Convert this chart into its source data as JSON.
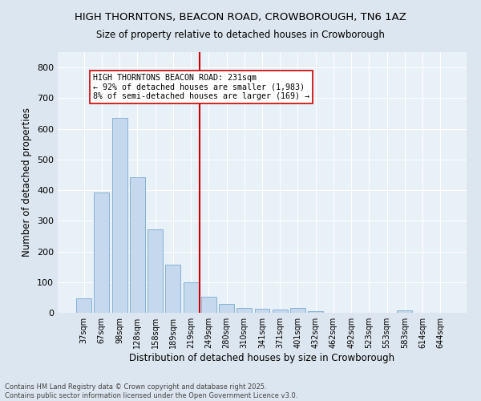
{
  "title1": "HIGH THORNTONS, BEACON ROAD, CROWBOROUGH, TN6 1AZ",
  "title2": "Size of property relative to detached houses in Crowborough",
  "xlabel": "Distribution of detached houses by size in Crowborough",
  "ylabel": "Number of detached properties",
  "categories": [
    "37sqm",
    "67sqm",
    "98sqm",
    "128sqm",
    "158sqm",
    "189sqm",
    "219sqm",
    "249sqm",
    "280sqm",
    "310sqm",
    "341sqm",
    "371sqm",
    "401sqm",
    "432sqm",
    "462sqm",
    "492sqm",
    "523sqm",
    "553sqm",
    "583sqm",
    "614sqm",
    "644sqm"
  ],
  "values": [
    48,
    393,
    635,
    443,
    271,
    157,
    100,
    52,
    30,
    17,
    13,
    11,
    15,
    5,
    0,
    0,
    0,
    0,
    7,
    0,
    0
  ],
  "bar_color": "#c5d8ed",
  "bar_edge_color": "#7aaace",
  "vline_x": 6.5,
  "vline_color": "#cc0000",
  "annotation_text": "HIGH THORNTONS BEACON ROAD: 231sqm\n← 92% of detached houses are smaller (1,983)\n8% of semi-detached houses are larger (169) →",
  "annotation_box_color": "#ffffff",
  "annotation_border_color": "#cc0000",
  "ylim": [
    0,
    850
  ],
  "yticks": [
    0,
    100,
    200,
    300,
    400,
    500,
    600,
    700,
    800
  ],
  "footer_text": "Contains HM Land Registry data © Crown copyright and database right 2025.\nContains public sector information licensed under the Open Government Licence v3.0.",
  "bg_color": "#dce6f0",
  "plot_bg_color": "#e8f0f8"
}
